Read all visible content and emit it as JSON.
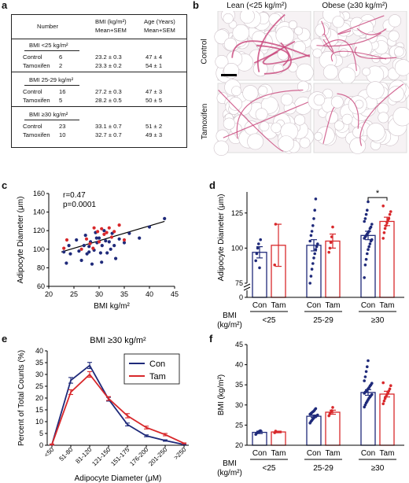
{
  "panel_a": {
    "letter": "a",
    "headers": {
      "number": "Number",
      "bmi_line1": "BMI (kg/m²)",
      "bmi_line2": "Mean+SEM",
      "age_line1": "Age (Years)",
      "age_line2": "Mean+SEM"
    },
    "groups": [
      {
        "label": "BMI <25 kg/m²",
        "rows": [
          {
            "name": "Control",
            "n": "6",
            "bmi": "23.2 ± 0.3",
            "age": "47 ± 4"
          },
          {
            "name": "Tamoxifen",
            "n": "2",
            "bmi": "23.3 ± 0.2",
            "age": "54 ± 1"
          }
        ]
      },
      {
        "label": "BMI 25-29 kg/m²",
        "rows": [
          {
            "name": "Control",
            "n": "16",
            "bmi": "27.2 ± 0.3",
            "age": "47 ± 3"
          },
          {
            "name": "Tamoxifen",
            "n": "5",
            "bmi": "28.2 ± 0.5",
            "age": "50 ± 5"
          }
        ]
      },
      {
        "label": "BMI ≥30 kg/m²",
        "rows": [
          {
            "name": "Control",
            "n": "23",
            "bmi": "33.1 ± 0.7",
            "age": "51 ± 2"
          },
          {
            "name": "Tamoxifen",
            "n": "10",
            "bmi": "32.7 ± 0.7",
            "age": "49 ± 3"
          }
        ]
      }
    ]
  },
  "panel_b": {
    "letter": "b",
    "col_titles": [
      "Lean (<25 kg/m²)",
      "Obese (≥30 kg/m²)"
    ],
    "row_titles": [
      "Control",
      "Tamoxifen"
    ],
    "colors": {
      "stain": "#c8457a",
      "background": "#f6f2f4"
    }
  },
  "panel_c": {
    "letter": "c"
  },
  "panel_d": {
    "letter": "d"
  },
  "panel_e": {
    "letter": "e"
  },
  "panel_f": {
    "letter": "f"
  },
  "colors": {
    "con": "#1f2a7a",
    "tam": "#d8282b"
  },
  "chart_data": [
    {
      "id": "c",
      "type": "scatter",
      "xlabel": "BMI kg/m²",
      "ylabel": "Adipocyte Diameter (μm)",
      "xlim": [
        20,
        45
      ],
      "ylim": [
        60,
        160
      ],
      "xticks": [
        20,
        25,
        30,
        35,
        40,
        45
      ],
      "yticks": [
        60,
        80,
        100,
        120,
        140,
        160
      ],
      "annotations": [
        "r=0.47",
        "p=0.0001"
      ],
      "regression": {
        "x": [
          22.5,
          43
        ],
        "y": [
          97,
          130
        ]
      },
      "series": [
        {
          "name": "Con",
          "points": [
            [
              23,
              97
            ],
            [
              23.5,
              85
            ],
            [
              24,
              104
            ],
            [
              24.3,
              95
            ],
            [
              25.5,
              110
            ],
            [
              26,
              98
            ],
            [
              26.5,
              88
            ],
            [
              27,
              104
            ],
            [
              27.3,
              115
            ],
            [
              27.6,
              95
            ],
            [
              28,
              103
            ],
            [
              28.3,
              108
            ],
            [
              28.6,
              84
            ],
            [
              29,
              99
            ],
            [
              29.3,
              118
            ],
            [
              29.6,
              107
            ],
            [
              30,
              112
            ],
            [
              30.3,
              96
            ],
            [
              30.6,
              104
            ],
            [
              31,
              120
            ],
            [
              31.3,
              109
            ],
            [
              31.6,
              96
            ],
            [
              32,
              108
            ],
            [
              32.3,
              100
            ],
            [
              32.6,
              117
            ],
            [
              33,
              104
            ],
            [
              33.3,
              90
            ],
            [
              34,
              111
            ],
            [
              35,
              107
            ],
            [
              36,
              117
            ],
            [
              38,
              112
            ],
            [
              40,
              124
            ],
            [
              43,
              133
            ],
            [
              30.5,
              86
            ],
            [
              29.5,
              112
            ],
            [
              28,
              97
            ]
          ]
        },
        {
          "name": "Tam",
          "points": [
            [
              23,
              101
            ],
            [
              23.6,
              110
            ],
            [
              26.5,
              100
            ],
            [
              27.5,
              111
            ],
            [
              28.2,
              106
            ],
            [
              29,
              123
            ],
            [
              29.7,
              119
            ],
            [
              30.5,
              122
            ],
            [
              31,
              116
            ],
            [
              31.5,
              118
            ],
            [
              32,
              123
            ],
            [
              32.5,
              113
            ],
            [
              33,
              119
            ],
            [
              34,
              126
            ],
            [
              35,
              110
            ],
            [
              30,
              108
            ],
            [
              28.8,
              101
            ]
          ]
        }
      ]
    },
    {
      "id": "d",
      "type": "bar",
      "ylabel": "Adipocyte Diameter (μm)",
      "ylim": [
        75,
        140
      ],
      "yticks": [
        75,
        100,
        125
      ],
      "axis_break": true,
      "xlabel_title": [
        "BMI",
        "(kg/m²)"
      ],
      "groups": [
        "<25",
        "25-29",
        "≥30"
      ],
      "bar_labels": [
        "Con",
        "Tam"
      ],
      "significance": "*",
      "series": [
        {
          "name": "Con",
          "values": [
            97,
            102,
            109
          ],
          "errors": [
            4,
            4,
            3
          ],
          "points": [
            [
              91,
              96,
              100,
              103,
              86,
              106
            ],
            [
              75,
              80,
              85,
              89,
              93,
              96,
              99,
              101,
              103,
              105,
              109,
              112,
              116,
              121,
              127,
              135
            ],
            [
              79,
              88,
              92,
              96,
              99,
              101,
              103,
              105,
              106,
              107,
              108,
              109,
              110,
              111,
              112,
              114,
              115,
              117,
              119,
              121,
              124,
              127,
              133
            ]
          ]
        },
        {
          "name": "Tam",
          "values": [
            102,
            105,
            119
          ],
          "errors": [
            15,
            5,
            3
          ],
          "points": [
            [
              88,
              117
            ],
            [
              97,
              100,
              104,
              108,
              115
            ],
            [
              107,
              111,
              114,
              116,
              118,
              120,
              121,
              124,
              126,
              130
            ]
          ]
        }
      ]
    },
    {
      "id": "e",
      "type": "line",
      "title": "BMI ≥30 kg/m²",
      "xlabel": "Adipocyte Diameter (μM)",
      "ylabel": "Percent of Total Counts (%)",
      "ylim": [
        0,
        40
      ],
      "yticks": [
        0,
        5,
        10,
        15,
        20,
        25,
        30,
        35,
        40
      ],
      "categories": [
        "<50",
        "51-80",
        "81-120",
        "121-150",
        "151-175",
        "176-200",
        "201-250",
        ">250"
      ],
      "series": [
        {
          "name": "Con",
          "values": [
            0.3,
            27.5,
            33.8,
            19.5,
            8.8,
            4.0,
            2.0,
            0.3
          ],
          "errors": [
            0.2,
            1.2,
            1.3,
            0.8,
            0.6,
            0.4,
            0.3,
            0.1
          ]
        },
        {
          "name": "Tam",
          "values": [
            0.3,
            22.5,
            30.0,
            19.8,
            12.5,
            7.5,
            4.5,
            0.8
          ],
          "errors": [
            0.2,
            1.0,
            1.2,
            0.8,
            0.9,
            0.6,
            0.5,
            0.2
          ]
        }
      ]
    },
    {
      "id": "f",
      "type": "bar",
      "ylabel": "BMI (kg/m²)",
      "ylim": [
        20,
        45
      ],
      "yticks": [
        20,
        25,
        30,
        35,
        40,
        45
      ],
      "xlabel_title": [
        "BMI",
        "(kg/m²)"
      ],
      "groups": [
        "<25",
        "25-29",
        "≥30"
      ],
      "bar_labels": [
        "Con",
        "Tam"
      ],
      "series": [
        {
          "name": "Con",
          "values": [
            23.2,
            27.2,
            33.1
          ],
          "errors": [
            0.3,
            0.3,
            0.7
          ],
          "points": [
            [
              22.7,
              23.0,
              23.2,
              23.3,
              23.5,
              23.6
            ],
            [
              25.5,
              25.9,
              26.2,
              26.5,
              26.8,
              27.0,
              27.2,
              27.3,
              27.5,
              27.7,
              27.9,
              28.1,
              28.3,
              28.5,
              28.8,
              29.1
            ],
            [
              29.5,
              30.0,
              30.5,
              30.9,
              31.3,
              31.7,
              32.0,
              32.3,
              32.6,
              32.9,
              33.2,
              33.4,
              33.7,
              34.0,
              34.3,
              34.7,
              35.0,
              35.4,
              36.0,
              37.0,
              38.3,
              39.5,
              41.0
            ]
          ]
        },
        {
          "name": "Tam",
          "values": [
            23.3,
            28.2,
            32.7
          ],
          "errors": [
            0.2,
            0.5,
            0.7
          ],
          "points": [
            [
              23.1,
              23.5
            ],
            [
              27.3,
              27.8,
              28.2,
              28.6,
              29.4
            ],
            [
              30.3,
              31.0,
              31.6,
              32.1,
              32.6,
              33.0,
              33.5,
              34.0,
              34.8,
              35.5
            ]
          ]
        }
      ]
    }
  ]
}
